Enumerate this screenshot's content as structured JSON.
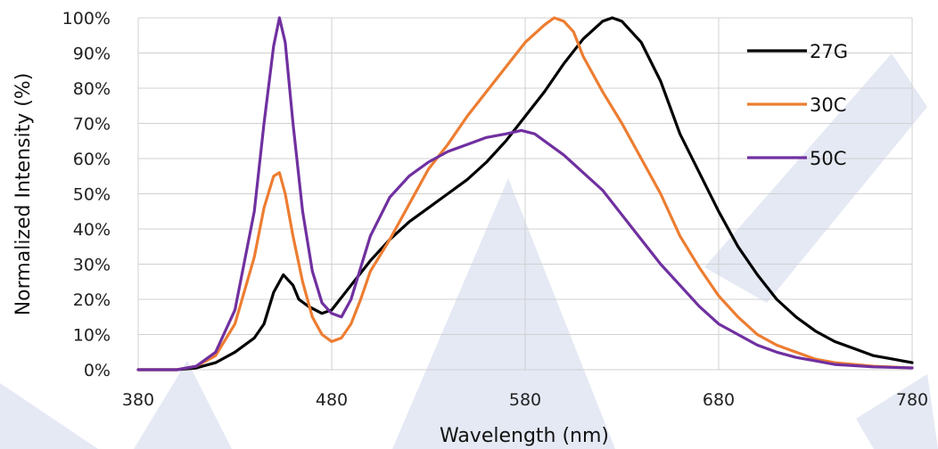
{
  "chart_data": {
    "type": "line",
    "xlabel": "Wavelength (nm)",
    "ylabel": "Normalized Intensity (%)",
    "xlim": [
      380,
      780
    ],
    "ylim": [
      0,
      100
    ],
    "x_ticks": [
      "380",
      "480",
      "580",
      "680",
      "780"
    ],
    "y_ticks": [
      "0%",
      "10%",
      "20%",
      "30%",
      "40%",
      "50%",
      "60%",
      "70%",
      "80%",
      "90%",
      "100%"
    ],
    "grid": true,
    "legend_position": "top-right",
    "series": [
      {
        "name": "27G",
        "color": "#000000",
        "points": [
          [
            380,
            0
          ],
          [
            400,
            0
          ],
          [
            410,
            0.5
          ],
          [
            420,
            2
          ],
          [
            430,
            5
          ],
          [
            440,
            9
          ],
          [
            445,
            13
          ],
          [
            450,
            22
          ],
          [
            455,
            27
          ],
          [
            460,
            24
          ],
          [
            463,
            20
          ],
          [
            468,
            18
          ],
          [
            475,
            16
          ],
          [
            480,
            17
          ],
          [
            490,
            24
          ],
          [
            500,
            31
          ],
          [
            510,
            37
          ],
          [
            520,
            42
          ],
          [
            530,
            46
          ],
          [
            540,
            50
          ],
          [
            550,
            54
          ],
          [
            560,
            59
          ],
          [
            570,
            65
          ],
          [
            580,
            72
          ],
          [
            590,
            79
          ],
          [
            600,
            87
          ],
          [
            610,
            94
          ],
          [
            620,
            99
          ],
          [
            625,
            100
          ],
          [
            630,
            99
          ],
          [
            640,
            93
          ],
          [
            650,
            82
          ],
          [
            660,
            67
          ],
          [
            670,
            56
          ],
          [
            680,
            45
          ],
          [
            690,
            35
          ],
          [
            700,
            27
          ],
          [
            710,
            20
          ],
          [
            720,
            15
          ],
          [
            730,
            11
          ],
          [
            740,
            8
          ],
          [
            750,
            6
          ],
          [
            760,
            4
          ],
          [
            770,
            3
          ],
          [
            780,
            2
          ]
        ]
      },
      {
        "name": "30C",
        "color": "#ED7D31",
        "points": [
          [
            380,
            0
          ],
          [
            400,
            0
          ],
          [
            410,
            1
          ],
          [
            420,
            4
          ],
          [
            430,
            13
          ],
          [
            440,
            32
          ],
          [
            445,
            46
          ],
          [
            450,
            55
          ],
          [
            453,
            56
          ],
          [
            456,
            50
          ],
          [
            460,
            38
          ],
          [
            465,
            25
          ],
          [
            470,
            15
          ],
          [
            475,
            10
          ],
          [
            480,
            8
          ],
          [
            485,
            9
          ],
          [
            490,
            13
          ],
          [
            495,
            20
          ],
          [
            500,
            28
          ],
          [
            510,
            37
          ],
          [
            520,
            47
          ],
          [
            530,
            57
          ],
          [
            540,
            64
          ],
          [
            550,
            72
          ],
          [
            560,
            79
          ],
          [
            570,
            86
          ],
          [
            580,
            93
          ],
          [
            590,
            98
          ],
          [
            595,
            100
          ],
          [
            600,
            99
          ],
          [
            605,
            96
          ],
          [
            610,
            89
          ],
          [
            620,
            79
          ],
          [
            630,
            70
          ],
          [
            640,
            60
          ],
          [
            650,
            50
          ],
          [
            660,
            38
          ],
          [
            670,
            29
          ],
          [
            680,
            21
          ],
          [
            690,
            15
          ],
          [
            700,
            10
          ],
          [
            710,
            7
          ],
          [
            720,
            5
          ],
          [
            730,
            3
          ],
          [
            740,
            2
          ],
          [
            750,
            1.5
          ],
          [
            760,
            1
          ],
          [
            780,
            0.5
          ]
        ]
      },
      {
        "name": "50C",
        "color": "#7030A0",
        "points": [
          [
            380,
            0
          ],
          [
            400,
            0
          ],
          [
            410,
            1
          ],
          [
            420,
            5
          ],
          [
            430,
            17
          ],
          [
            440,
            45
          ],
          [
            445,
            70
          ],
          [
            450,
            92
          ],
          [
            453,
            100
          ],
          [
            456,
            93
          ],
          [
            460,
            70
          ],
          [
            465,
            45
          ],
          [
            470,
            28
          ],
          [
            475,
            19
          ],
          [
            480,
            16
          ],
          [
            485,
            15
          ],
          [
            490,
            20
          ],
          [
            495,
            29
          ],
          [
            500,
            38
          ],
          [
            510,
            49
          ],
          [
            520,
            55
          ],
          [
            530,
            59
          ],
          [
            540,
            62
          ],
          [
            550,
            64
          ],
          [
            560,
            66
          ],
          [
            570,
            67
          ],
          [
            578,
            68
          ],
          [
            585,
            67
          ],
          [
            590,
            65
          ],
          [
            600,
            61
          ],
          [
            610,
            56
          ],
          [
            620,
            51
          ],
          [
            630,
            44
          ],
          [
            640,
            37
          ],
          [
            650,
            30
          ],
          [
            660,
            24
          ],
          [
            670,
            18
          ],
          [
            680,
            13
          ],
          [
            690,
            10
          ],
          [
            700,
            7
          ],
          [
            710,
            5
          ],
          [
            720,
            3.5
          ],
          [
            730,
            2.5
          ],
          [
            740,
            1.5
          ],
          [
            760,
            0.8
          ],
          [
            780,
            0.5
          ]
        ]
      }
    ]
  }
}
